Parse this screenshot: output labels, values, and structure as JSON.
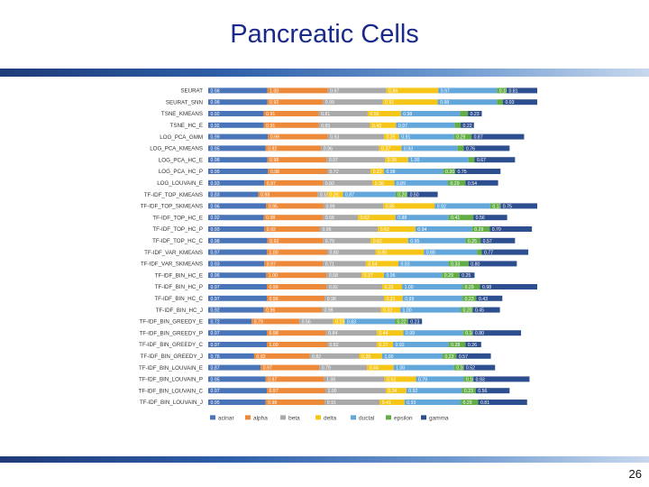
{
  "slide": {
    "title": "Pancreatic Cells",
    "page_number": "26"
  },
  "colors": {
    "acinar": "#4a74b8",
    "alpha": "#ed8a3a",
    "beta": "#a9a9a9",
    "delta": "#f5c518",
    "ductal": "#62a6da",
    "epsilon": "#63ad47",
    "gamma": "#2e4f8f"
  },
  "chart_data": {
    "type": "bar",
    "orientation": "horizontal",
    "stacked": true,
    "title": "",
    "legend_position": "bottom",
    "categories": [
      "SEURAT",
      "SEURAT_SNN",
      "TSNE_KMEANS",
      "TSNE_HC_E",
      "LOG_PCA_GMM",
      "LOG_PCA_KMEANS",
      "LOG_PCA_HC_E",
      "LOG_PCA_HC_P",
      "LOG_LOUVAIN_E",
      "TF-IDF_TOP_KMEANS",
      "TF-IDF_TOP_SKMEANS",
      "TF-IDF_TOP_HC_E",
      "TF-IDF_TOP_HC_P",
      "TF-IDF_TOP_HC_C",
      "TF-IDF_VAR_KMEANS",
      "TF-IDF_VAR_SKMEANS",
      "TF-IDF_BIN_HC_E",
      "TF-IDF_BIN_HC_P",
      "TF-IDF_BIN_HC_C",
      "TF-IDF_BIN_HC_J",
      "TF-IDF_BIN_GREEDY_E",
      "TF-IDF_BIN_GREEDY_P",
      "TF-IDF_BIN_GREEDY_C",
      "TF-IDF_BIN_GREEDY_J",
      "TF-IDF_BIN_LOUVAIN_E",
      "TF-IDF_BIN_LOUVAIN_P",
      "TF-IDF_BIN_LOUVAIN_C",
      "TF-IDF_BIN_LOUVAIN_J"
    ],
    "series": [
      {
        "name": "acinar",
        "values": [
          0.98,
          0.98,
          0.92,
          0.92,
          0.99,
          0.95,
          0.98,
          0.99,
          0.93,
          0.83,
          0.96,
          0.92,
          0.93,
          0.98,
          0.97,
          0.93,
          0.96,
          0.97,
          0.97,
          0.92,
          0.72,
          0.97,
          0.97,
          0.76,
          0.87,
          0.95,
          0.97,
          0.95
        ]
      },
      {
        "name": "alpha",
        "values": [
          1.0,
          0.92,
          0.91,
          0.91,
          0.99,
          0.92,
          0.98,
          0.98,
          0.97,
          0.98,
          0.95,
          0.98,
          0.92,
          0.92,
          1.0,
          0.97,
          1.0,
          0.99,
          0.96,
          0.96,
          0.79,
          0.98,
          1.0,
          0.92,
          0.97,
          0.97,
          0.97,
          0.98
        ]
      },
      {
        "name": "beta",
        "values": [
          0.97,
          0.99,
          0.81,
          0.85,
          0.93,
          0.96,
          0.97,
          0.72,
          0.82,
          0.16,
          0.99,
          0.58,
          0.96,
          0.79,
          0.8,
          0.71,
          0.58,
          0.92,
          0.98,
          0.98,
          0.56,
          0.84,
          0.82,
          0.82,
          0.79,
          1.0,
          1.0,
          0.91
        ]
      },
      {
        "name": "delta",
        "values": [
          0.86,
          0.91,
          0.55,
          0.43,
          0.25,
          0.37,
          0.38,
          0.22,
          0.36,
          0.26,
          0.85,
          0.62,
          0.62,
          0.62,
          0.8,
          0.54,
          0.37,
          0.33,
          0.31,
          0.32,
          0.19,
          0.44,
          0.27,
          0.38,
          0.44,
          0.52,
          0.34,
          0.41
        ]
      },
      {
        "name": "ductal",
        "values": [
          0.97,
          0.98,
          0.98,
          0.97,
          0.91,
          0.93,
          1.0,
          0.98,
          0.89,
          0.87,
          0.92,
          0.88,
          0.94,
          0.95,
          0.88,
          0.83,
          0.96,
          1.0,
          0.99,
          1.0,
          0.83,
          0.99,
          0.92,
          1.0,
          1.0,
          0.79,
          0.92,
          0.93
        ]
      },
      {
        "name": "epsilon",
        "values": [
          0.16,
          0.1,
          0.13,
          0.1,
          0.29,
          0.1,
          0.1,
          0.2,
          0.29,
          0.2,
          0.17,
          0.41,
          0.29,
          0.25,
          0.08,
          0.33,
          0.29,
          0.29,
          0.23,
          0.2,
          0.22,
          0.16,
          0.28,
          0.23,
          0.16,
          0.16,
          0.23,
          0.29
        ]
      },
      {
        "name": "gamma",
        "values": [
          0.81,
          0.93,
          0.23,
          0.22,
          0.87,
          0.76,
          0.67,
          0.75,
          0.54,
          0.5,
          0.75,
          0.56,
          0.7,
          0.57,
          0.77,
          0.8,
          0.25,
          0.98,
          0.43,
          0.45,
          0.23,
          0.8,
          0.26,
          0.57,
          0.52,
          0.93,
          0.56,
          0.81
        ]
      }
    ]
  }
}
